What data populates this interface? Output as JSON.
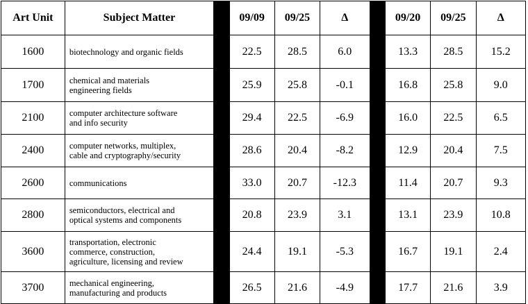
{
  "headers": {
    "art_unit": "Art Unit",
    "subject": "Subject Matter",
    "a_start": "09/09",
    "a_end": "09/25",
    "a_delta": "Δ",
    "b_start": "09/20",
    "b_end": "09/25",
    "b_delta": "Δ"
  },
  "rows": [
    {
      "unit": "1600",
      "subject_lines": [
        "biotechnology and organic fields"
      ],
      "a_start": "22.5",
      "a_end": "28.5",
      "a_delta": "6.0",
      "b_start": "13.3",
      "b_end": "28.5",
      "b_delta": "15.2"
    },
    {
      "unit": "1700",
      "subject_lines": [
        "chemical and materials",
        "engineering fields"
      ],
      "a_start": "25.9",
      "a_end": "25.8",
      "a_delta": "-0.1",
      "b_start": "16.8",
      "b_end": "25.8",
      "b_delta": "9.0"
    },
    {
      "unit": "2100",
      "subject_lines": [
        "computer architecture software",
        "and info security"
      ],
      "a_start": "29.4",
      "a_end": "22.5",
      "a_delta": "-6.9",
      "b_start": "16.0",
      "b_end": "22.5",
      "b_delta": "6.5"
    },
    {
      "unit": "2400",
      "subject_lines": [
        "computer networks, multiplex,",
        "cable and cryptography/security"
      ],
      "a_start": "28.6",
      "a_end": "20.4",
      "a_delta": "-8.2",
      "b_start": "12.9",
      "b_end": "20.4",
      "b_delta": "7.5"
    },
    {
      "unit": "2600",
      "subject_lines": [
        "communications"
      ],
      "a_start": "33.0",
      "a_end": "20.7",
      "a_delta": "-12.3",
      "b_start": "11.4",
      "b_end": "20.7",
      "b_delta": "9.3"
    },
    {
      "unit": "2800",
      "subject_lines": [
        "semiconductors, electrical and",
        "optical systems and components"
      ],
      "a_start": "20.8",
      "a_end": "23.9",
      "a_delta": "3.1",
      "b_start": "13.1",
      "b_end": "23.9",
      "b_delta": "10.8"
    },
    {
      "unit": "3600",
      "subject_lines": [
        "transportation, electronic",
        "commerce, construction,",
        "agriculture, licensing and review"
      ],
      "a_start": "24.4",
      "a_end": "19.1",
      "a_delta": "-5.3",
      "b_start": "16.7",
      "b_end": "19.1",
      "b_delta": "2.4"
    },
    {
      "unit": "3700",
      "subject_lines": [
        "mechanical engineering,",
        "manufacturing and products"
      ],
      "a_start": "26.5",
      "a_end": "21.6",
      "a_delta": "-4.9",
      "b_start": "17.7",
      "b_end": "21.6",
      "b_delta": "3.9"
    }
  ]
}
